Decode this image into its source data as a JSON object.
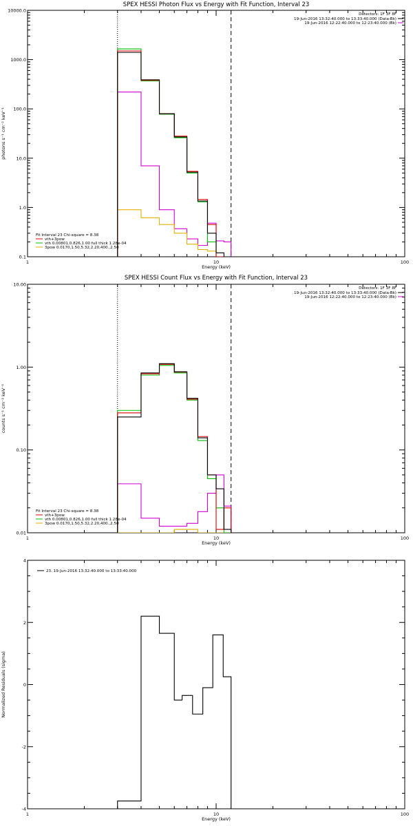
{
  "colors": {
    "data": "#000000",
    "background": "#d000d0",
    "total_fit": "#e00000",
    "thermal": "#00c000",
    "power_law": "#e0b000"
  },
  "chart_data": [
    {
      "type": "line",
      "step": true,
      "title": "SPEX HESSI Photon Flux vs Energy with Fit Function, Interval 23",
      "xlabel": "Energy (keV)",
      "ylabel": "photons s⁻¹ cm⁻² keV⁻¹",
      "x_scale": "log",
      "y_scale": "log",
      "xlim": [
        1,
        100
      ],
      "ylim": [
        0.1,
        10000
      ],
      "x_ticks": [
        1,
        10,
        100
      ],
      "x_tick_labels": [
        "1",
        "10",
        "100"
      ],
      "y_ticks": [
        0.1,
        1,
        10,
        100,
        1000,
        10000
      ],
      "y_tick_labels": [
        "0.1",
        "1.0",
        "10.0",
        "100.0",
        "1000.0",
        "10000.0"
      ],
      "vlines": [
        {
          "x": 3.0,
          "style": "dotted"
        },
        {
          "x": 12.0,
          "style": "dashed"
        }
      ],
      "bin_edges": [
        3.0,
        4.0,
        5.0,
        6.0,
        7.0,
        8.0,
        9.0,
        10.0,
        11.0,
        12.0
      ],
      "legend_top": {
        "header": "Detectors: 1F 3F 8F",
        "entries": [
          {
            "text": "19-Jun-2016 13:32:40.000 to 13:33:40.000 (Data-Bk)",
            "color_key": "data"
          },
          {
            "text": "19-Jun-2016 12:22:40.000 to 12:23:40.000 (Bk)",
            "color_key": "background"
          }
        ]
      },
      "legend_bottom": {
        "header": "Fit Interval 23   Chi-square = 8.38",
        "entries": [
          {
            "text": "vth+3pow",
            "color_key": "total_fit"
          },
          {
            "text": "vth 0.00801,0.826,1.00  full thick 1.28e-04",
            "color_key": "thermal"
          },
          {
            "text": "3pow 0.0170,1.50,5.32,2.20,400.,2.50",
            "color_key": "power_law"
          }
        ]
      },
      "series": [
        {
          "name": "Data-Bk",
          "color_key": "data",
          "values": [
            1400,
            390,
            80,
            27,
            5.2,
            1.35,
            0.3,
            0.12,
            0.1
          ]
        },
        {
          "name": "Bk",
          "color_key": "background",
          "values": [
            220,
            7,
            0.9,
            0.37,
            0.23,
            0.17,
            0.48,
            0.21,
            0.2
          ]
        },
        {
          "name": "vth+3pow",
          "color_key": "total_fit",
          "values": [
            1500,
            380,
            80,
            28,
            5.4,
            1.45,
            0.45,
            0.1,
            0.1
          ]
        },
        {
          "name": "vth",
          "color_key": "thermal",
          "values": [
            1650,
            370,
            78,
            26,
            5,
            1.3,
            0.2,
            0.1,
            0.1
          ]
        },
        {
          "name": "3pow",
          "color_key": "power_law",
          "values": [
            0.9,
            0.62,
            0.45,
            0.3,
            0.18,
            0.14,
            0.13,
            0.1,
            0.1
          ]
        }
      ]
    },
    {
      "type": "line",
      "step": true,
      "title": "SPEX HESSI Count Flux vs Energy with Fit Function, Interval 23",
      "xlabel": "Energy (keV)",
      "ylabel": "counts s⁻¹ cm⁻² keV⁻¹",
      "x_scale": "log",
      "y_scale": "log",
      "xlim": [
        1,
        100
      ],
      "ylim": [
        0.01,
        10
      ],
      "x_ticks": [
        1,
        10,
        100
      ],
      "x_tick_labels": [
        "1",
        "10",
        "100"
      ],
      "y_ticks": [
        0.01,
        0.1,
        1,
        10
      ],
      "y_tick_labels": [
        "0.01",
        "0.10",
        "1.00",
        "10.00"
      ],
      "vlines": [
        {
          "x": 3.0,
          "style": "dotted"
        },
        {
          "x": 12.0,
          "style": "dashed"
        }
      ],
      "bin_edges": [
        3.0,
        4.0,
        5.0,
        6.0,
        7.0,
        8.0,
        9.0,
        10.0,
        11.0,
        12.0
      ],
      "legend_top": {
        "header": "Detectors: 1F 3F 8F",
        "entries": [
          {
            "text": "19-Jun-2016 13:32:40.000 to 13:33:40.000 (Data-Bk)",
            "color_key": "data"
          },
          {
            "text": "19-Jun-2016 12:22:40.000 to 12:23:40.000 (Bk)",
            "color_key": "background"
          }
        ]
      },
      "legend_bottom": {
        "header": "Fit Interval 23   Chi-square = 8.38",
        "entries": [
          {
            "text": "vth+3pow",
            "color_key": "total_fit"
          },
          {
            "text": "vth 0.00801,0.826,1.00  full thick 1.28e-04",
            "color_key": "thermal"
          },
          {
            "text": "3pow 0.0170,1.50,5.32,2.20,400.,2.50",
            "color_key": "power_law"
          }
        ]
      },
      "series": [
        {
          "name": "Data-Bk",
          "color_key": "data",
          "values": [
            0.25,
            0.85,
            1.1,
            0.88,
            0.42,
            0.14,
            0.05,
            0.034,
            0.011
          ]
        },
        {
          "name": "Bk",
          "color_key": "background",
          "values": [
            0.039,
            0.015,
            0.012,
            0.012,
            0.013,
            0.018,
            0.03,
            0.05,
            0.021
          ]
        },
        {
          "name": "vth+3pow",
          "color_key": "total_fit",
          "values": [
            0.28,
            0.83,
            1.08,
            0.87,
            0.41,
            0.145,
            0.05,
            0.011,
            0.02
          ]
        },
        {
          "name": "vth",
          "color_key": "thermal",
          "values": [
            0.3,
            0.8,
            1.05,
            0.85,
            0.4,
            0.13,
            0.045,
            0.02,
            0.01
          ]
        },
        {
          "name": "3pow",
          "color_key": "power_law",
          "values": [
            0.008,
            0.008,
            0.009,
            0.011,
            0.011,
            0.01,
            0.009,
            0.009,
            0.009
          ]
        }
      ]
    },
    {
      "type": "line",
      "step": true,
      "title": "",
      "xlabel": "Energy (keV)",
      "ylabel": "Normalized Residuals (sigma)",
      "x_scale": "log",
      "y_scale": "linear",
      "xlim": [
        1,
        100
      ],
      "ylim": [
        -4,
        4
      ],
      "x_ticks": [
        1,
        10,
        100
      ],
      "x_tick_labels": [
        "1",
        "10",
        "100"
      ],
      "y_ticks": [
        -4,
        -2,
        0,
        2,
        4
      ],
      "y_tick_labels": [
        "-4",
        "-2",
        "0",
        "2",
        "4"
      ],
      "legend_top_left": {
        "entries": [
          {
            "text": "23. 19-Jun-2016 13:32:40.000 to 13:33:40.000",
            "color_key": "data"
          }
        ]
      },
      "bin_edges": [
        3.0,
        4.0,
        5.0,
        6.0,
        6.6,
        7.5,
        8.5,
        9.6,
        10.9,
        12.0
      ],
      "series": [
        {
          "name": "23. 19-Jun-2016 13:32:40.000 to 13:33:40.000",
          "color_key": "data",
          "values": [
            -3.75,
            2.2,
            1.65,
            -0.5,
            -0.35,
            -0.95,
            -0.1,
            1.6,
            0.25
          ]
        }
      ]
    }
  ]
}
